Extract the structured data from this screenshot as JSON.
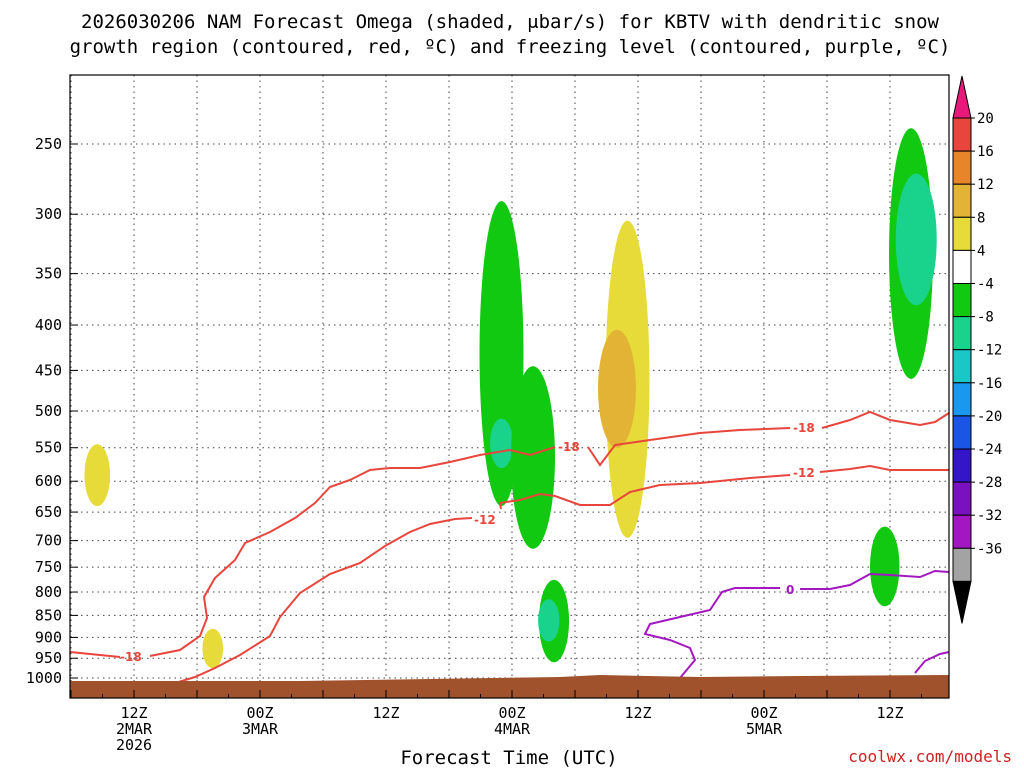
{
  "chart_data": {
    "type": "time-height cross section",
    "title_line1": "2026030206 NAM Forecast Omega (shaded, μbar/s) for KBTV with dendritic snow",
    "title_line2": "growth region (contoured, red, ºC) and freezing level (contoured, purple, ºC)",
    "xlabel": "Forecast Time (UTC)",
    "credit": "coolwx.com/models",
    "y_ticks": [
      "250",
      "300",
      "350",
      "400",
      "450",
      "500",
      "550",
      "600",
      "650",
      "700",
      "750",
      "800",
      "850",
      "900",
      "950",
      "1000"
    ],
    "y_values": [
      250,
      300,
      350,
      400,
      450,
      500,
      550,
      600,
      650,
      700,
      750,
      800,
      850,
      900,
      950,
      1000
    ],
    "x_ticks": [
      {
        "hour": 6,
        "lines": [
          "12Z",
          "2MAR",
          "2026"
        ]
      },
      {
        "hour": 18,
        "lines": [
          "00Z",
          "3MAR"
        ]
      },
      {
        "hour": 30,
        "lines": [
          "12Z"
        ]
      },
      {
        "hour": 42,
        "lines": [
          "00Z",
          "4MAR"
        ]
      },
      {
        "hour": 54,
        "lines": [
          "12Z"
        ]
      },
      {
        "hour": 66,
        "lines": [
          "00Z",
          "5MAR"
        ]
      },
      {
        "hour": 78,
        "lines": [
          "12Z"
        ]
      }
    ],
    "colorbar": {
      "labels": [
        "20",
        "16",
        "12",
        "8",
        "4",
        "-4",
        "-8",
        "-12",
        "-16",
        "-20",
        "-24",
        "-28",
        "-32",
        "-36"
      ],
      "colors_top_to_bottom": [
        "#e8197a",
        "#e8453c",
        "#e8852a",
        "#e3b335",
        "#e6db38",
        "#ffffff",
        "#11c911",
        "#19d38c",
        "#1ac7c7",
        "#1a98f0",
        "#1a55e6",
        "#3515c8",
        "#7a10c0",
        "#a317c2",
        "#a3a3a3",
        "#000000"
      ]
    },
    "contours": {
      "dgz_labels": [
        "-18",
        "-18",
        "-18",
        "-12",
        "-12"
      ],
      "freezing_labels": [
        "0"
      ],
      "dgz_color": "#e8453c",
      "freezing_color": "#a317c2"
    },
    "surface_color": "#a0522d",
    "omega_regions": [
      {
        "value_range": "4 to 8",
        "color": "#e6db38",
        "hour": 2.5,
        "pressure": [
          545,
          640
        ]
      },
      {
        "value_range": "4 to 8",
        "color": "#e6db38",
        "hour": 13.5,
        "pressure": [
          880,
          975
        ]
      },
      {
        "value_range": "-4 to -8",
        "color": "#11c911",
        "hour": 41,
        "pressure": [
          290,
          640
        ]
      },
      {
        "value_range": "-8 to -12",
        "color": "#19d38c",
        "hour": 41,
        "pressure": [
          510,
          580
        ]
      },
      {
        "value_range": "-4 to -8",
        "color": "#11c911",
        "hour": 44,
        "pressure": [
          445,
          715
        ]
      },
      {
        "value_range": "-4 to -8",
        "color": "#11c911",
        "hour": 46,
        "pressure": [
          775,
          960
        ]
      },
      {
        "value_range": "-8 to -12",
        "color": "#19d38c",
        "hour": 45.5,
        "pressure": [
          815,
          910
        ]
      },
      {
        "value_range": "4 to 8",
        "color": "#e6db38",
        "hour": 53,
        "pressure": [
          305,
          695
        ]
      },
      {
        "value_range": "8 to 12",
        "color": "#e3b335",
        "hour": 52,
        "pressure": [
          405,
          550
        ]
      },
      {
        "value_range": "-4 to -8",
        "color": "#11c911",
        "hour": 80,
        "pressure": [
          240,
          460
        ]
      },
      {
        "value_range": "-8 to -12",
        "color": "#19d38c",
        "hour": 80.5,
        "pressure": [
          270,
          380
        ]
      },
      {
        "value_range": "-4 to -8",
        "color": "#11c911",
        "hour": 77.5,
        "pressure": [
          675,
          830
        ]
      }
    ]
  }
}
